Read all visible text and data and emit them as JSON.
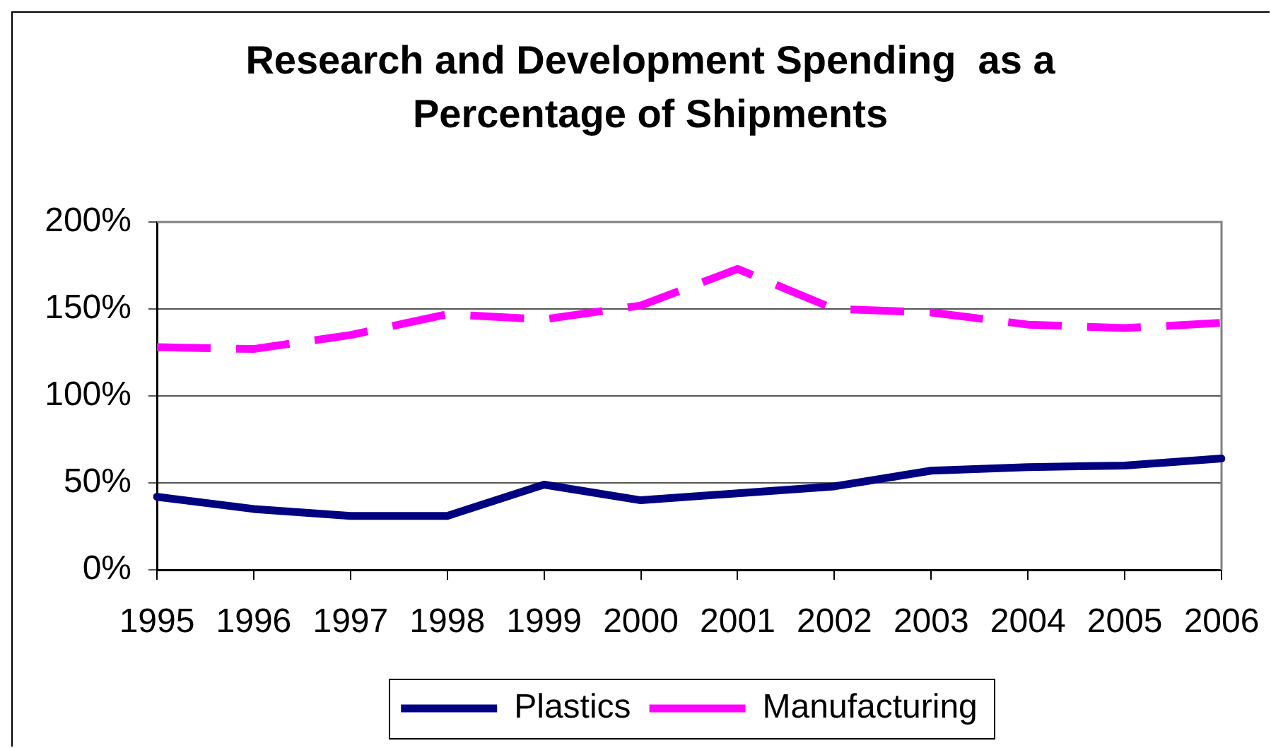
{
  "chart_data": {
    "type": "line",
    "title": "Research and Development Spending  as a Percentage of Shipments",
    "categories": [
      "1995",
      "1996",
      "1997",
      "1998",
      "1999",
      "2000",
      "2001",
      "2002",
      "2003",
      "2004",
      "2005",
      "2006"
    ],
    "series": [
      {
        "name": "Plastics",
        "color": "#000080",
        "line_style": "solid",
        "values": [
          42,
          35,
          31,
          31,
          49,
          40,
          44,
          48,
          57,
          59,
          60,
          64
        ]
      },
      {
        "name": "Manufacturing",
        "color": "#ff00ff",
        "line_style": "dashed",
        "values": [
          128,
          127,
          135,
          147,
          144,
          152,
          173,
          150,
          148,
          141,
          139,
          142
        ]
      }
    ],
    "ylim": [
      0,
      200
    ],
    "yticks": [
      {
        "value": 0,
        "label": "0%"
      },
      {
        "value": 50,
        "label": "50%"
      },
      {
        "value": 100,
        "label": "100%"
      },
      {
        "value": 150,
        "label": "150%"
      },
      {
        "value": 200,
        "label": "200%"
      }
    ],
    "grid": "y",
    "legend": "bottom"
  }
}
